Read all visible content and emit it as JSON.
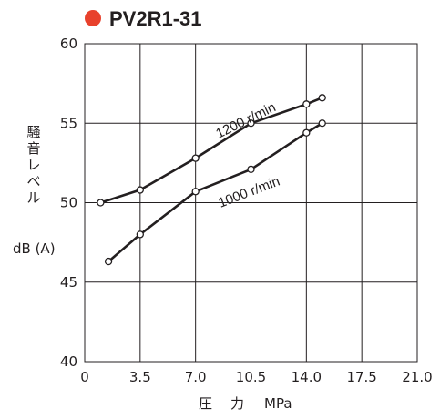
{
  "chart_data": {
    "type": "line",
    "title": "PV2R1-31",
    "title_marker_color": "#e8412c",
    "xlabel_chars": [
      "圧",
      "力"
    ],
    "xlabel_unit": "MPa",
    "ylabel_chars": [
      "騒",
      "音",
      "レ",
      "ベ",
      "ル"
    ],
    "ylabel_unit": "dB (A)",
    "xlim": [
      0,
      21
    ],
    "ylim": [
      40,
      60
    ],
    "x_ticks": [
      0,
      3.5,
      7,
      10.5,
      14,
      17.5,
      21
    ],
    "x_tick_labels": [
      "0",
      "3.5",
      "7.0",
      "10.5",
      "14.0",
      "17.5",
      "21.0"
    ],
    "y_ticks": [
      40,
      45,
      50,
      55,
      60
    ],
    "y_tick_labels": [
      "40",
      "45",
      "50",
      "55",
      "60"
    ],
    "grid": true,
    "line_color": "#231f20",
    "series": [
      {
        "name": "1200 r/min",
        "x": [
          1.0,
          3.5,
          7.0,
          10.5,
          14.0,
          15.0
        ],
        "y": [
          50.0,
          50.8,
          52.8,
          55.0,
          56.2,
          56.6
        ]
      },
      {
        "name": "1000 r/min",
        "x": [
          1.5,
          3.5,
          7.0,
          10.5,
          14.0,
          15.0
        ],
        "y": [
          46.3,
          48.0,
          50.7,
          52.1,
          54.4,
          55.0
        ]
      }
    ]
  }
}
